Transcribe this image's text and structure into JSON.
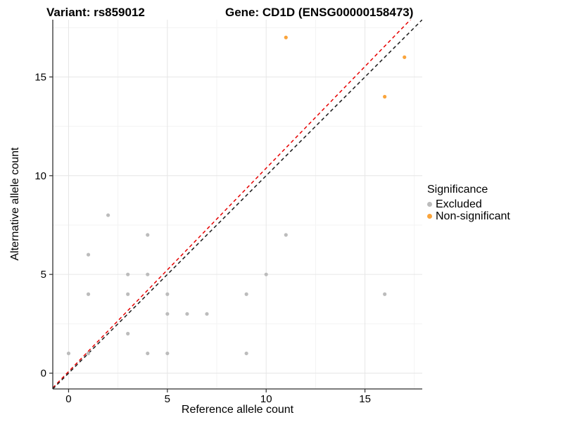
{
  "titles": {
    "variant": "Variant: rs859012",
    "gene": "Gene: CD1D (ENSG00000158473)"
  },
  "chart_data": {
    "type": "scatter",
    "title_left": "Variant: rs859012",
    "title_right": "Gene: CD1D (ENSG00000158473)",
    "xlabel": "Reference allele count",
    "ylabel": "Alternative allele count",
    "xlim": [
      -0.8,
      17.9
    ],
    "ylim": [
      -0.8,
      17.9
    ],
    "xticks": [
      0,
      5,
      10,
      15
    ],
    "yticks": [
      0,
      5,
      10,
      15
    ],
    "minor_ticks": [
      2.5,
      7.5,
      12.5,
      17.5
    ],
    "grid": true,
    "colors": {
      "excluded": "#BCBCBC",
      "non_significant": "#FAA43B",
      "identity_line": "#1A1A1A",
      "fit_line": "#E60000",
      "grid_major": "#E6E6E6",
      "grid_minor": "#F3F3F3",
      "axis": "#2F2F2F"
    },
    "series": [
      {
        "name": "Excluded",
        "color": "#BCBCBC",
        "points": [
          [
            0,
            1
          ],
          [
            1,
            1
          ],
          [
            1,
            4
          ],
          [
            1,
            6
          ],
          [
            2,
            8
          ],
          [
            3,
            2
          ],
          [
            3,
            4
          ],
          [
            3,
            5
          ],
          [
            4,
            1
          ],
          [
            4,
            5
          ],
          [
            4,
            7
          ],
          [
            5,
            1
          ],
          [
            5,
            3
          ],
          [
            5,
            4
          ],
          [
            6,
            3
          ],
          [
            7,
            3
          ],
          [
            9,
            1
          ],
          [
            9,
            4
          ],
          [
            10,
            5
          ],
          [
            11,
            7
          ],
          [
            16,
            4
          ]
        ]
      },
      {
        "name": "Non-significant",
        "color": "#FAA43B",
        "points": [
          [
            11,
            17
          ],
          [
            16,
            14
          ],
          [
            17,
            16
          ]
        ]
      }
    ],
    "ablines": [
      {
        "name": "fit-line",
        "color": "#E60000",
        "slope": 1.03,
        "intercept": 0.08,
        "dash": "5,4"
      },
      {
        "name": "identity-line",
        "color": "#1A1A1A",
        "slope": 1.0,
        "intercept": 0.0,
        "dash": "5,4"
      }
    ],
    "legend": {
      "title": "Significance",
      "position": "right",
      "items": [
        {
          "label": "Excluded",
          "color": "#BCBCBC"
        },
        {
          "label": "Non-significant",
          "color": "#FAA43B"
        }
      ]
    }
  }
}
